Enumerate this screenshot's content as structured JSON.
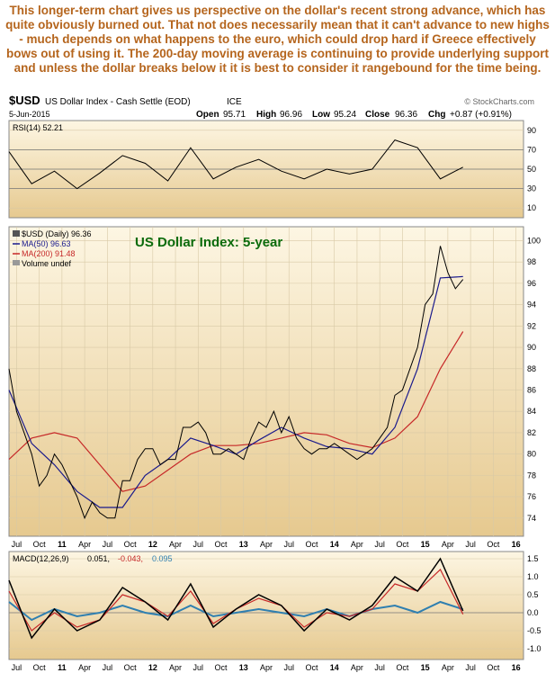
{
  "commentary": "This longer-term chart gives us perspective on the dollar's recent strong advance, which has quite obviously burned out. That not does necessarily mean that it can't advance to new highs - much depends on what happens to the euro, which could drop hard if Greece effectively bows out of using it. The 200-day moving average is continuing to provide underlying support and unless the dollar breaks below it it is best to consider it rangebound for the time being.",
  "header": {
    "symbol": "$USD",
    "name": "US Dollar Index - Cash Settle (EOD)",
    "exchange": "ICE",
    "watermark": "© StockCharts.com",
    "date": "5-Jun-2015",
    "open_label": "Open",
    "open_value": "95.71",
    "high_label": "High",
    "high_value": "96.96",
    "low_label": "Low",
    "low_value": "95.24",
    "close_label": "Close",
    "close_value": "96.36",
    "chg_label": "Chg",
    "chg_value": "+0.87 (+0.91%)"
  },
  "colors": {
    "panel_bg_top": "#fdf6e3",
    "panel_bg_bottom": "#e6c98f",
    "price": "#000000",
    "ma50": "#1a1a8c",
    "ma200": "#c62828",
    "macd": "#000000",
    "signal": "#c62828",
    "histogram": "#2f7fb0",
    "title": "#0b6b0b",
    "commentary": "#b5651d"
  },
  "chart_data": [
    {
      "type": "line",
      "panel": "RSI",
      "legend": "RSI(14) 52.21",
      "y_ticks": [
        10,
        30,
        50,
        70,
        90
      ],
      "ylim": [
        0,
        100
      ],
      "reference_lines": [
        30,
        50,
        70
      ],
      "series": [
        {
          "name": "RSI(14)",
          "current": 52.21,
          "x": [
            "2010-06",
            "2010-09",
            "2010-12",
            "2011-03",
            "2011-06",
            "2011-09",
            "2011-12",
            "2012-03",
            "2012-06",
            "2012-09",
            "2012-12",
            "2013-03",
            "2013-06",
            "2013-09",
            "2013-12",
            "2014-03",
            "2014-06",
            "2014-09",
            "2014-12",
            "2015-03",
            "2015-06"
          ],
          "values": [
            68,
            35,
            48,
            30,
            46,
            64,
            56,
            38,
            72,
            40,
            52,
            60,
            48,
            40,
            50,
            45,
            50,
            80,
            72,
            40,
            52
          ]
        }
      ]
    },
    {
      "type": "line",
      "panel": "Price",
      "title": "US Dollar Index: 5-year",
      "legend": [
        "$USD (Daily) 96.36",
        "MA(50) 96.63",
        "MA(200) 91.48",
        "Volume undef"
      ],
      "y_ticks": [
        74,
        76,
        78,
        80,
        82,
        84,
        86,
        88,
        90,
        92,
        94,
        96,
        98,
        100
      ],
      "ylim": [
        72.3,
        101.3
      ],
      "x_ticks": [
        "Jul",
        "Oct",
        "11",
        "Apr",
        "Jul",
        "Oct",
        "12",
        "Apr",
        "Jul",
        "Oct",
        "13",
        "Apr",
        "Jul",
        "Oct",
        "14",
        "Apr",
        "Jul",
        "Oct",
        "15",
        "Apr",
        "Jul",
        "Oct",
        "16"
      ],
      "series": [
        {
          "name": "$USD (Daily)",
          "current": 96.36,
          "x": [
            "2010-06",
            "2010-07",
            "2010-08",
            "2010-09",
            "2010-10",
            "2010-11",
            "2010-12",
            "2011-01",
            "2011-02",
            "2011-03",
            "2011-04",
            "2011-05",
            "2011-06",
            "2011-07",
            "2011-08",
            "2011-09",
            "2011-10",
            "2011-11",
            "2011-12",
            "2012-01",
            "2012-02",
            "2012-03",
            "2012-04",
            "2012-05",
            "2012-06",
            "2012-07",
            "2012-08",
            "2012-09",
            "2012-10",
            "2012-11",
            "2012-12",
            "2013-01",
            "2013-02",
            "2013-03",
            "2013-04",
            "2013-05",
            "2013-06",
            "2013-07",
            "2013-08",
            "2013-09",
            "2013-10",
            "2013-11",
            "2013-12",
            "2014-01",
            "2014-02",
            "2014-03",
            "2014-04",
            "2014-05",
            "2014-06",
            "2014-07",
            "2014-08",
            "2014-09",
            "2014-10",
            "2014-11",
            "2014-12",
            "2015-01",
            "2015-02",
            "2015-03",
            "2015-04",
            "2015-05",
            "2015-06"
          ],
          "values": [
            88,
            84,
            82,
            80,
            77,
            78,
            80,
            79,
            77.5,
            76,
            74,
            75.5,
            74.5,
            74,
            74,
            77.5,
            77.5,
            79.5,
            80.5,
            80.5,
            79,
            79.5,
            79.5,
            82.5,
            82.5,
            83,
            82,
            80,
            80,
            80.5,
            80,
            79.5,
            81.5,
            83,
            82.5,
            84,
            82,
            83.5,
            81.5,
            80.5,
            80,
            80.5,
            80.5,
            81,
            80.5,
            80,
            79.5,
            80,
            80.5,
            81.5,
            82.5,
            85.5,
            86,
            88,
            90,
            94,
            95,
            99.5,
            97,
            95.5,
            96.36
          ]
        },
        {
          "name": "MA(50)",
          "current": 96.63,
          "x": [
            "2010-06",
            "2010-09",
            "2010-12",
            "2011-03",
            "2011-06",
            "2011-09",
            "2011-12",
            "2012-03",
            "2012-06",
            "2012-09",
            "2012-12",
            "2013-03",
            "2013-06",
            "2013-09",
            "2013-12",
            "2014-03",
            "2014-06",
            "2014-09",
            "2014-12",
            "2015-03",
            "2015-06"
          ],
          "values": [
            86,
            81,
            79,
            76.5,
            75,
            75,
            78,
            79.5,
            81.5,
            80.8,
            80,
            81.3,
            82.5,
            81.5,
            80.7,
            80.5,
            80,
            82.5,
            88,
            96.5,
            96.63
          ]
        },
        {
          "name": "MA(200)",
          "current": 91.48,
          "x": [
            "2010-06",
            "2010-09",
            "2010-12",
            "2011-03",
            "2011-06",
            "2011-09",
            "2011-12",
            "2012-03",
            "2012-06",
            "2012-09",
            "2012-12",
            "2013-03",
            "2013-06",
            "2013-09",
            "2013-12",
            "2014-03",
            "2014-06",
            "2014-09",
            "2014-12",
            "2015-03",
            "2015-06"
          ],
          "values": [
            79.5,
            81.5,
            82,
            81.5,
            79,
            76.5,
            77,
            78.5,
            80,
            80.8,
            80.8,
            81,
            81.5,
            82,
            81.8,
            81,
            80.6,
            81.5,
            83.5,
            88,
            91.48
          ]
        }
      ]
    },
    {
      "type": "line",
      "panel": "MACD",
      "legend": [
        "MACD(12,26,9)",
        "0.051,",
        "-0.043,",
        "0.095"
      ],
      "y_ticks": [
        "-1.0",
        "-0.5",
        "0.0",
        "0.5",
        "1.0",
        "1.5"
      ],
      "ylim": [
        -1.3,
        1.7
      ],
      "series": [
        {
          "name": "MACD",
          "current": 0.051,
          "x": [
            "2010-06",
            "2010-09",
            "2010-12",
            "2011-03",
            "2011-06",
            "2011-09",
            "2011-12",
            "2012-03",
            "2012-06",
            "2012-09",
            "2012-12",
            "2013-03",
            "2013-06",
            "2013-09",
            "2013-12",
            "2014-03",
            "2014-06",
            "2014-09",
            "2014-12",
            "2015-03",
            "2015-06"
          ],
          "values": [
            0.9,
            -0.7,
            0.1,
            -0.5,
            -0.2,
            0.7,
            0.3,
            -0.2,
            0.8,
            -0.4,
            0.1,
            0.5,
            0.2,
            -0.5,
            0.1,
            -0.2,
            0.2,
            1.0,
            0.6,
            1.5,
            0.051
          ]
        },
        {
          "name": "Signal",
          "current": -0.043,
          "x": [
            "2010-06",
            "2010-09",
            "2010-12",
            "2011-03",
            "2011-06",
            "2011-09",
            "2011-12",
            "2012-03",
            "2012-06",
            "2012-09",
            "2012-12",
            "2013-03",
            "2013-06",
            "2013-09",
            "2013-12",
            "2014-03",
            "2014-06",
            "2014-09",
            "2014-12",
            "2015-03",
            "2015-06"
          ],
          "values": [
            0.6,
            -0.5,
            0.0,
            -0.4,
            -0.2,
            0.5,
            0.3,
            -0.1,
            0.6,
            -0.3,
            0.1,
            0.4,
            0.2,
            -0.4,
            0.0,
            -0.1,
            0.1,
            0.8,
            0.6,
            1.2,
            -0.043
          ]
        },
        {
          "name": "Histogram",
          "current": 0.095,
          "x": [
            "2010-06",
            "2010-09",
            "2010-12",
            "2011-03",
            "2011-06",
            "2011-09",
            "2011-12",
            "2012-03",
            "2012-06",
            "2012-09",
            "2012-12",
            "2013-03",
            "2013-06",
            "2013-09",
            "2013-12",
            "2014-03",
            "2014-06",
            "2014-09",
            "2014-12",
            "2015-03",
            "2015-06"
          ],
          "values": [
            0.3,
            -0.2,
            0.1,
            -0.1,
            0.0,
            0.2,
            0.0,
            -0.1,
            0.2,
            -0.1,
            0.0,
            0.1,
            0.0,
            -0.1,
            0.1,
            -0.1,
            0.1,
            0.2,
            0.0,
            0.3,
            0.095
          ]
        }
      ]
    }
  ]
}
